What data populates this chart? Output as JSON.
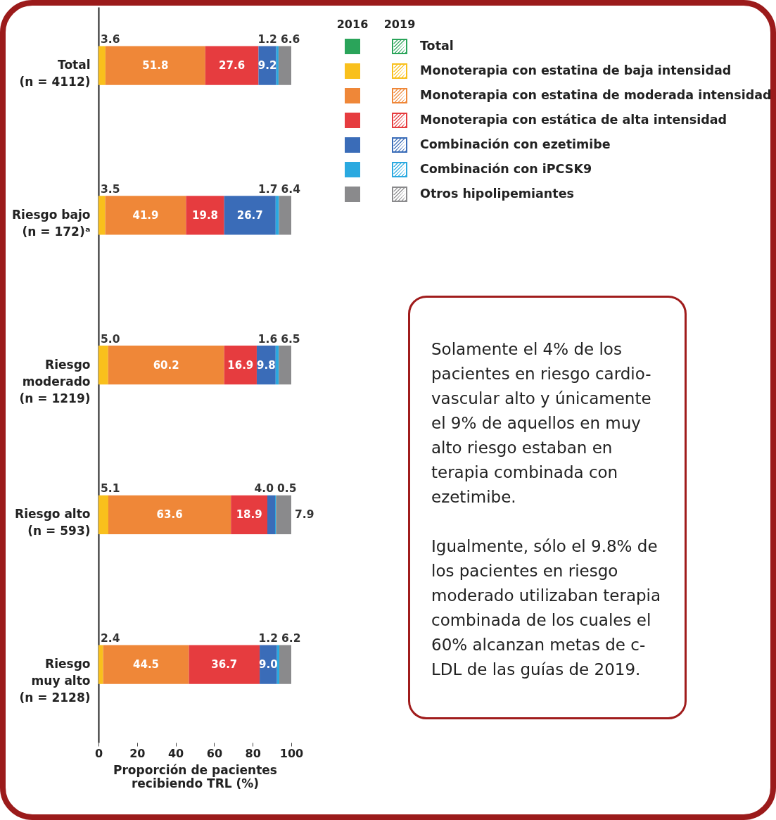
{
  "chart_data": {
    "type": "bar",
    "orientation": "horizontal",
    "stacked": true,
    "categories": [
      "Total\n(n = 4112)",
      "Riesgo bajo\n(n = 172)ᵃ",
      "Riesgo\nmoderado\n(n = 1219)",
      "Riesgo alto\n(n = 593)",
      "Riesgo\nmuy alto\n(n = 2128)"
    ],
    "series": [
      {
        "name": "Total",
        "color": "#2aa45a",
        "values": [
          null,
          null,
          null,
          null,
          null
        ]
      },
      {
        "name": "Monoterapia con estatina de baja intensidad",
        "color": "#f9c01c",
        "values": [
          3.6,
          3.5,
          5.0,
          5.1,
          2.4
        ],
        "value_labels": [
          "3.6",
          "3.5",
          "5.0",
          "5.1",
          "2.4"
        ]
      },
      {
        "name": "Monoterapia con estatina de moderada intensidad",
        "color": "#ef8738",
        "values": [
          51.8,
          41.9,
          60.2,
          63.6,
          44.5
        ],
        "value_labels": [
          "51.8",
          "41.9",
          "60.2",
          "63.6",
          "44.5"
        ]
      },
      {
        "name": "Monoterapia con estática de alta intensidad",
        "color": "#e63c3f",
        "values": [
          27.6,
          19.8,
          16.9,
          18.9,
          36.7
        ],
        "value_labels": [
          "27.6",
          "19.8",
          "16.9",
          "18.9",
          "36.7"
        ]
      },
      {
        "name": "Combinación con ezetimibe",
        "color": "#3a6cb8",
        "values": [
          9.2,
          26.7,
          9.8,
          4.0,
          9.0
        ],
        "value_labels": [
          "9.2",
          "26.7",
          "9.8",
          "4.0",
          "9.0"
        ]
      },
      {
        "name": "Combinación con iPCSK9",
        "color": "#2aa9e0",
        "values": [
          1.2,
          1.7,
          1.6,
          0.5,
          1.2
        ],
        "value_labels": [
          "1.2",
          "1.7",
          "1.6",
          "0.5",
          "1.2"
        ]
      },
      {
        "name": "Otros hipolipemiantes",
        "color": "#8a8a8c",
        "values": [
          6.6,
          6.4,
          6.5,
          7.9,
          6.2
        ],
        "value_labels": [
          "6.6",
          "6.4",
          "6.5",
          "7.9",
          "6.2"
        ]
      }
    ],
    "xlim": [
      0,
      100
    ],
    "xticks": [
      0,
      20,
      40,
      60,
      80,
      100
    ],
    "xlabel": "Proporción de pacientes\nrecibiendo TRL (%)",
    "grid": false,
    "legend": "top right",
    "annotations": [
      "2016",
      "2019",
      "Solamente el 4% de los pacientes en riesgo cardio-vascular alto y únicamente el 9% de aquellos en muy alto riesgo estaban en terapia combinada con ezetimibe.",
      "Igualmente, sólo el 9.8% de los pacientes en riesgo moderado utilizaban terapia combinada de los cuales el 60% alcanzan metas de c-LDL de las guías de 2019."
    ]
  }
}
